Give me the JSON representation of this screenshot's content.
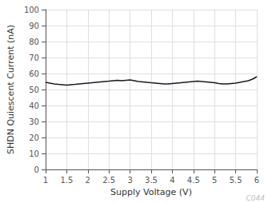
{
  "chart_data": {
    "type": "line",
    "xlabel": "Supply Voltage (V)",
    "ylabel": "SHDN Quiescent Current (nA)",
    "annotations": [
      "C044"
    ],
    "x": [
      1.0,
      1.1,
      1.2,
      1.3,
      1.4,
      1.5,
      1.6,
      1.7,
      1.8,
      1.9,
      2.0,
      2.1,
      2.2,
      2.3,
      2.4,
      2.5,
      2.6,
      2.7,
      2.8,
      2.9,
      3.0,
      3.1,
      3.2,
      3.3,
      3.4,
      3.5,
      3.6,
      3.7,
      3.8,
      3.9,
      4.0,
      4.1,
      4.2,
      4.3,
      4.4,
      4.5,
      4.6,
      4.7,
      4.8,
      4.9,
      5.0,
      5.1,
      5.2,
      5.3,
      5.4,
      5.5,
      5.6,
      5.7,
      5.8,
      5.9,
      6.0
    ],
    "values": [
      54.5,
      54.0,
      53.5,
      53.2,
      53.0,
      52.8,
      53.0,
      53.2,
      53.5,
      53.8,
      54.0,
      54.2,
      54.5,
      54.8,
      55.0,
      55.2,
      55.5,
      55.8,
      55.5,
      55.8,
      56.0,
      55.5,
      55.0,
      54.8,
      54.5,
      54.2,
      54.0,
      53.8,
      53.5,
      53.5,
      53.8,
      54.0,
      54.2,
      54.5,
      54.8,
      55.0,
      55.2,
      55.0,
      54.8,
      54.5,
      54.2,
      53.8,
      53.5,
      53.5,
      53.8,
      54.0,
      54.5,
      55.0,
      55.5,
      56.5,
      58.0
    ],
    "color": "#1a1a1a",
    "xlim": [
      1,
      6
    ],
    "ylim": [
      0,
      100
    ],
    "xticks": [
      1,
      1.5,
      2,
      2.5,
      3,
      3.5,
      4,
      4.5,
      5,
      5.5,
      6
    ],
    "yticks": [
      0,
      10,
      20,
      30,
      40,
      50,
      60,
      70,
      80,
      90,
      100
    ],
    "grid": true
  }
}
